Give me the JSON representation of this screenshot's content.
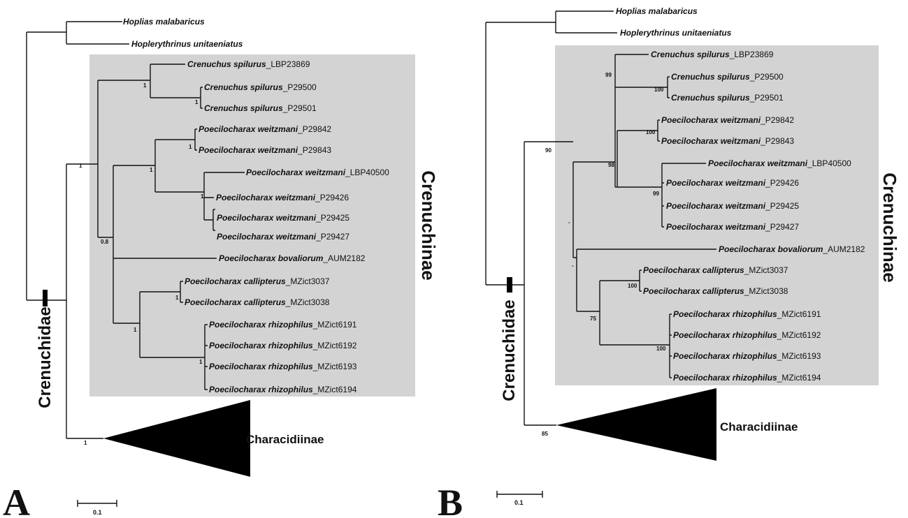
{
  "panels": [
    {
      "id": "A",
      "letter": "A",
      "subfamily_label": "Crenuchinae",
      "family_label": "Crenuchidae",
      "collapsed_label": "Characidiinae",
      "scale_label": "0.1",
      "tips": [
        {
          "species": "Hoplias malabaricus",
          "voucher": ""
        },
        {
          "species": "Hoplerythrinus unitaeniatus",
          "voucher": ""
        },
        {
          "species": "Crenuchus spilurus",
          "voucher": "_LBP23869"
        },
        {
          "species": "Crenuchus spilurus",
          "voucher": "_P29500"
        },
        {
          "species": "Crenuchus spilurus",
          "voucher": "_P29501"
        },
        {
          "species": "Poecilocharax weitzmani",
          "voucher": "_P29842"
        },
        {
          "species": "Poecilocharax weitzmani",
          "voucher": "_P29843"
        },
        {
          "species": "Poecilocharax weitzmani",
          "voucher": "_LBP40500"
        },
        {
          "species": "Poecilocharax weitzmani",
          "voucher": "_P29426"
        },
        {
          "species": "Poecilocharax weitzmani",
          "voucher": "_P29425"
        },
        {
          "species": "Poecilocharax weitzmani",
          "voucher": "_P29427"
        },
        {
          "species": "Poecilocharax bovaliorum",
          "voucher": "_AUM2182"
        },
        {
          "species": "Poecilocharax callipterus",
          "voucher": "_MZict3037"
        },
        {
          "species": "Poecilocharax callipterus",
          "voucher": "_MZict3038"
        },
        {
          "species": "Poecilocharax rhizophilus",
          "voucher": "_MZict6191"
        },
        {
          "species": "Poecilocharax rhizophilus",
          "voucher": "_MZict6192"
        },
        {
          "species": "Poecilocharax rhizophilus",
          "voucher": "_MZict6193"
        },
        {
          "species": "Poecilocharax rhizophilus",
          "voucher": "_MZict6194"
        }
      ],
      "support": [
        "1",
        "1",
        "1",
        "1",
        "1",
        "1",
        "0.8",
        "1",
        "1",
        "1",
        "1"
      ]
    },
    {
      "id": "B",
      "letter": "B",
      "subfamily_label": "Crenuchinae",
      "family_label": "Crenuchidae",
      "collapsed_label": "Characidiinae",
      "scale_label": "0.1",
      "tips": [
        {
          "species": "Hoplias malabaricus",
          "voucher": ""
        },
        {
          "species": "Hoplerythrinus unitaeniatus",
          "voucher": ""
        },
        {
          "species": "Crenuchus spilurus",
          "voucher": "_LBP23869"
        },
        {
          "species": "Crenuchus spilurus",
          "voucher": "_P29500"
        },
        {
          "species": "Crenuchus spilurus",
          "voucher": "_P29501"
        },
        {
          "species": "Poecilocharax weitzmani",
          "voucher": "_P29842"
        },
        {
          "species": "Poecilocharax weitzmani",
          "voucher": "_P29843"
        },
        {
          "species": "Poecilocharax weitzmani",
          "voucher": "_LBP40500"
        },
        {
          "species": "Poecilocharax weitzmani",
          "voucher": "_P29426"
        },
        {
          "species": "Poecilocharax weitzmani",
          "voucher": "_P29425"
        },
        {
          "species": "Poecilocharax weitzmani",
          "voucher": "_P29427"
        },
        {
          "species": "Poecilocharax bovaliorum",
          "voucher": "_AUM2182"
        },
        {
          "species": "Poecilocharax callipterus",
          "voucher": "_MZict3037"
        },
        {
          "species": "Poecilocharax callipterus",
          "voucher": "_MZict3038"
        },
        {
          "species": "Poecilocharax rhizophilus",
          "voucher": "_MZict6191"
        },
        {
          "species": "Poecilocharax rhizophilus",
          "voucher": "_MZict6192"
        },
        {
          "species": "Poecilocharax rhizophilus",
          "voucher": "_MZict6193"
        },
        {
          "species": "Poecilocharax rhizophilus",
          "voucher": "_MZict6194"
        }
      ],
      "support": [
        "99",
        "100",
        "100",
        "90",
        "98",
        "99",
        "-",
        "-",
        "100",
        "75",
        "100",
        "85"
      ]
    }
  ],
  "colors": {
    "clade_box": "#d3d3d3",
    "branch": "#111111"
  }
}
